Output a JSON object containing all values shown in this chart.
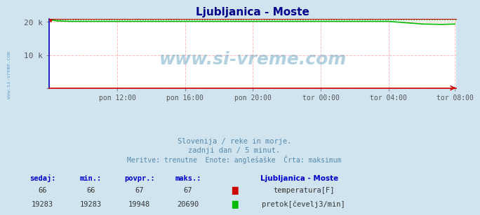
{
  "title": "Ljubljanica - Moste",
  "title_color": "#00008b",
  "bg_color": "#d0e4f0",
  "plot_bg_color": "#ffffff",
  "grid_color": "#ffbbbb",
  "xlabel": "",
  "ylabel": "",
  "xlim": [
    0,
    288
  ],
  "ylim": [
    0,
    21000
  ],
  "ytick_positions": [
    0,
    10000,
    20000
  ],
  "ytick_labels": [
    "",
    "10 k",
    "20 k"
  ],
  "xtick_positions": [
    48,
    96,
    144,
    192,
    240,
    287
  ],
  "xtick_labels": [
    "pon 12:00",
    "pon 16:00",
    "pon 20:00",
    "tor 00:00",
    "tor 04:00",
    "tor 08:00"
  ],
  "temp_color": "#cc0000",
  "flow_color": "#00bb00",
  "flow_max_value": 20690,
  "n_points": 288,
  "watermark": "www.si-vreme.com",
  "subtitle1": "Slovenija / reke in morje.",
  "subtitle2": "zadnji dan / 5 minut.",
  "subtitle3": "Meritve: trenutne  Enote: anglešaške  Črta: maksimum",
  "footer_labels": [
    "sedaj:",
    "min.:",
    "povpr.:",
    "maks.:"
  ],
  "footer_label_color": "#0000cc",
  "station_name": "Ljubljanica - Moste",
  "temp_stats": [
    "66",
    "66",
    "67",
    "67"
  ],
  "flow_stats": [
    "19283",
    "19283",
    "19948",
    "20690"
  ],
  "legend_temp": "temperatura[F]",
  "legend_flow": "pretok[čevelj3/min]",
  "sidebar_text": "www.si-vreme.com",
  "spine_left_color": "#0000bb",
  "spine_bottom_color": "#cc0000",
  "spine_top_color": "#cc0000"
}
